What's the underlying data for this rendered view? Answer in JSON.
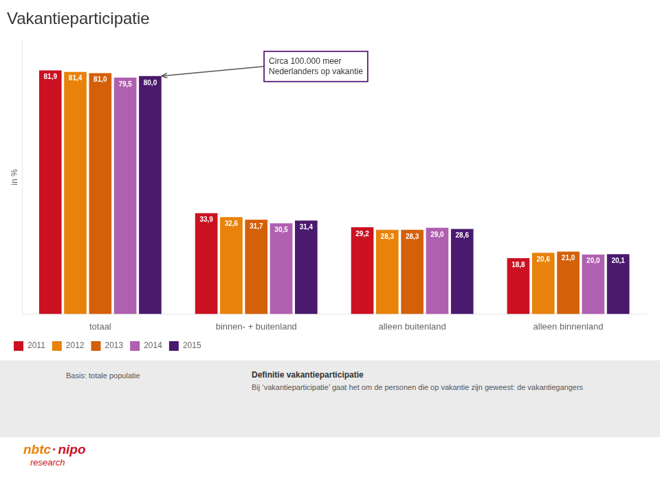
{
  "chart_data": {
    "type": "bar",
    "title": "Vakantieparticipatie",
    "ylabel": "in %",
    "categories": [
      "totaal",
      "binnen- + buitenland",
      "alleen buitenland",
      "alleen binnenland"
    ],
    "series": [
      {
        "name": "2011",
        "color": "#cc1122",
        "values": [
          81.9,
          33.9,
          29.2,
          18.8
        ],
        "value_labels": [
          "81,9",
          "33,9",
          "29,2",
          "18,8"
        ]
      },
      {
        "name": "2012",
        "color": "#e8820a",
        "values": [
          81.4,
          32.6,
          28.3,
          20.6
        ],
        "value_labels": [
          "81,4",
          "32,6",
          "28,3",
          "20,6"
        ]
      },
      {
        "name": "2013",
        "color": "#d4600a",
        "values": [
          81.0,
          31.7,
          28.3,
          21.0
        ],
        "value_labels": [
          "81,0",
          "31,7",
          "28,3",
          "21,0"
        ]
      },
      {
        "name": "2014",
        "color": "#b060b0",
        "values": [
          79.5,
          30.5,
          29.0,
          20.0
        ],
        "value_labels": [
          "79,5",
          "30,5",
          "29,0",
          "20,0"
        ]
      },
      {
        "name": "2015",
        "color": "#4a1a6e",
        "values": [
          80.0,
          31.4,
          28.6,
          20.1
        ],
        "value_labels": [
          "80,0",
          "31,4",
          "28,6",
          "20,1"
        ]
      }
    ],
    "ylim": [
      0,
      92
    ],
    "grid": false,
    "legend": "bottom",
    "data_labels": true,
    "tick_labels": "x",
    "annotations": [
      {
        "text": "Circa 100.000 meer\nNederlanders op vakantie",
        "series": "2015",
        "category": "totaal"
      }
    ],
    "footer": {
      "basis": "Basis: totale populatie",
      "definition_title": "Definitie vakantieparticipatie",
      "definition": "Bij ‘vakantieparticipatie’ gaat het om de personen die op vakantie zijn geweest: de vakantiegangers"
    },
    "logo": [
      "nbtc",
      "·",
      "nipo",
      "research"
    ]
  }
}
